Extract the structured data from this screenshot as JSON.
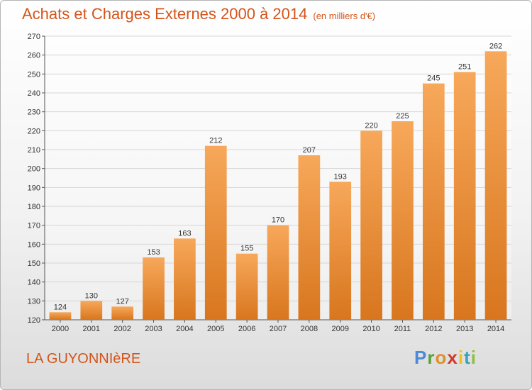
{
  "header": {
    "title": "Achats et Charges Externes 2000 à 2014",
    "subtitle": "(en milliers d'€)"
  },
  "footer": {
    "place": "LA GUYONNIèRE"
  },
  "brand": {
    "letters": [
      {
        "ch": "P",
        "color": "#4a8ad6"
      },
      {
        "ch": "r",
        "color": "#5aa03a"
      },
      {
        "ch": "o",
        "color": "#e0902a"
      },
      {
        "ch": "x",
        "color": "#d03a2a"
      },
      {
        "ch": "i",
        "color": "#f0c020"
      },
      {
        "ch": "t",
        "color": "#3aa0c0"
      },
      {
        "ch": "i",
        "color": "#8ac040"
      }
    ]
  },
  "colors": {
    "bar_top": "#f7a85a",
    "bar_bottom": "#d8761e",
    "accent": "#d4541a",
    "grid": "#d6d6d6"
  },
  "chart_data": {
    "type": "bar",
    "title": "Achats et Charges Externes 2000 à 2014",
    "subtitle": "(en milliers d'€)",
    "xlabel": "",
    "ylabel": "",
    "categories": [
      "2000",
      "2001",
      "2002",
      "2003",
      "2004",
      "2005",
      "2006",
      "2007",
      "2008",
      "2009",
      "2010",
      "2011",
      "2012",
      "2013",
      "2014"
    ],
    "values": [
      124,
      130,
      127,
      153,
      163,
      212,
      155,
      170,
      207,
      193,
      220,
      225,
      245,
      251,
      262
    ],
    "ylim": [
      120,
      270
    ],
    "yticks": [
      120,
      130,
      140,
      150,
      160,
      170,
      180,
      190,
      200,
      210,
      220,
      230,
      240,
      250,
      260,
      270
    ],
    "grid": true,
    "legend": "none"
  }
}
